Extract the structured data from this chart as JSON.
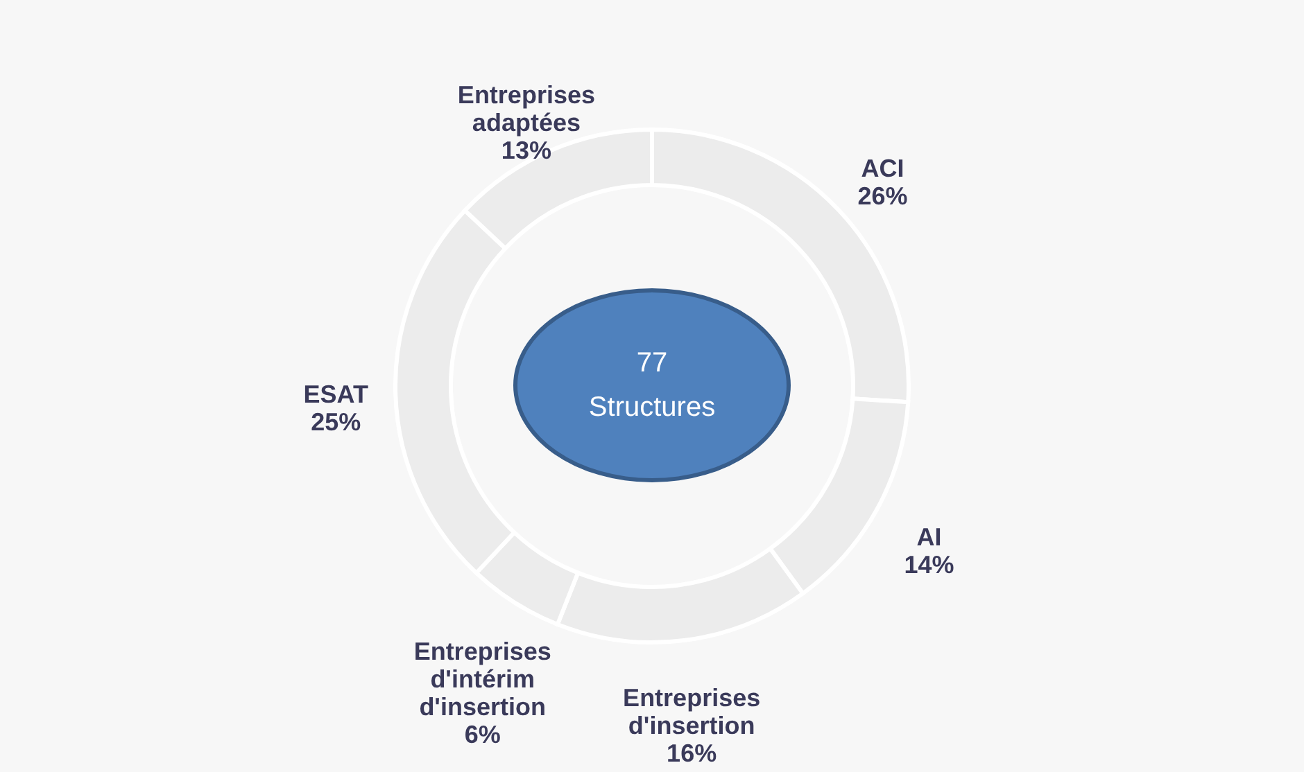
{
  "chart_data": {
    "type": "donut",
    "categories": [
      "ACI",
      "AI",
      "Entreprises d'insertion",
      "Entreprises d'intérim d'insertion",
      "ESAT",
      "Entreprises adaptées"
    ],
    "values": [
      26,
      14,
      16,
      6,
      25,
      13
    ],
    "value_labels": [
      "26%",
      "14%",
      "16%",
      "6%",
      "25%",
      "13%"
    ],
    "colors": [
      "#ececec",
      "#ececec",
      "#ececec",
      "#ececec",
      "#ececec",
      "#ececec"
    ],
    "annotations": [
      "77 Structures"
    ]
  }
}
